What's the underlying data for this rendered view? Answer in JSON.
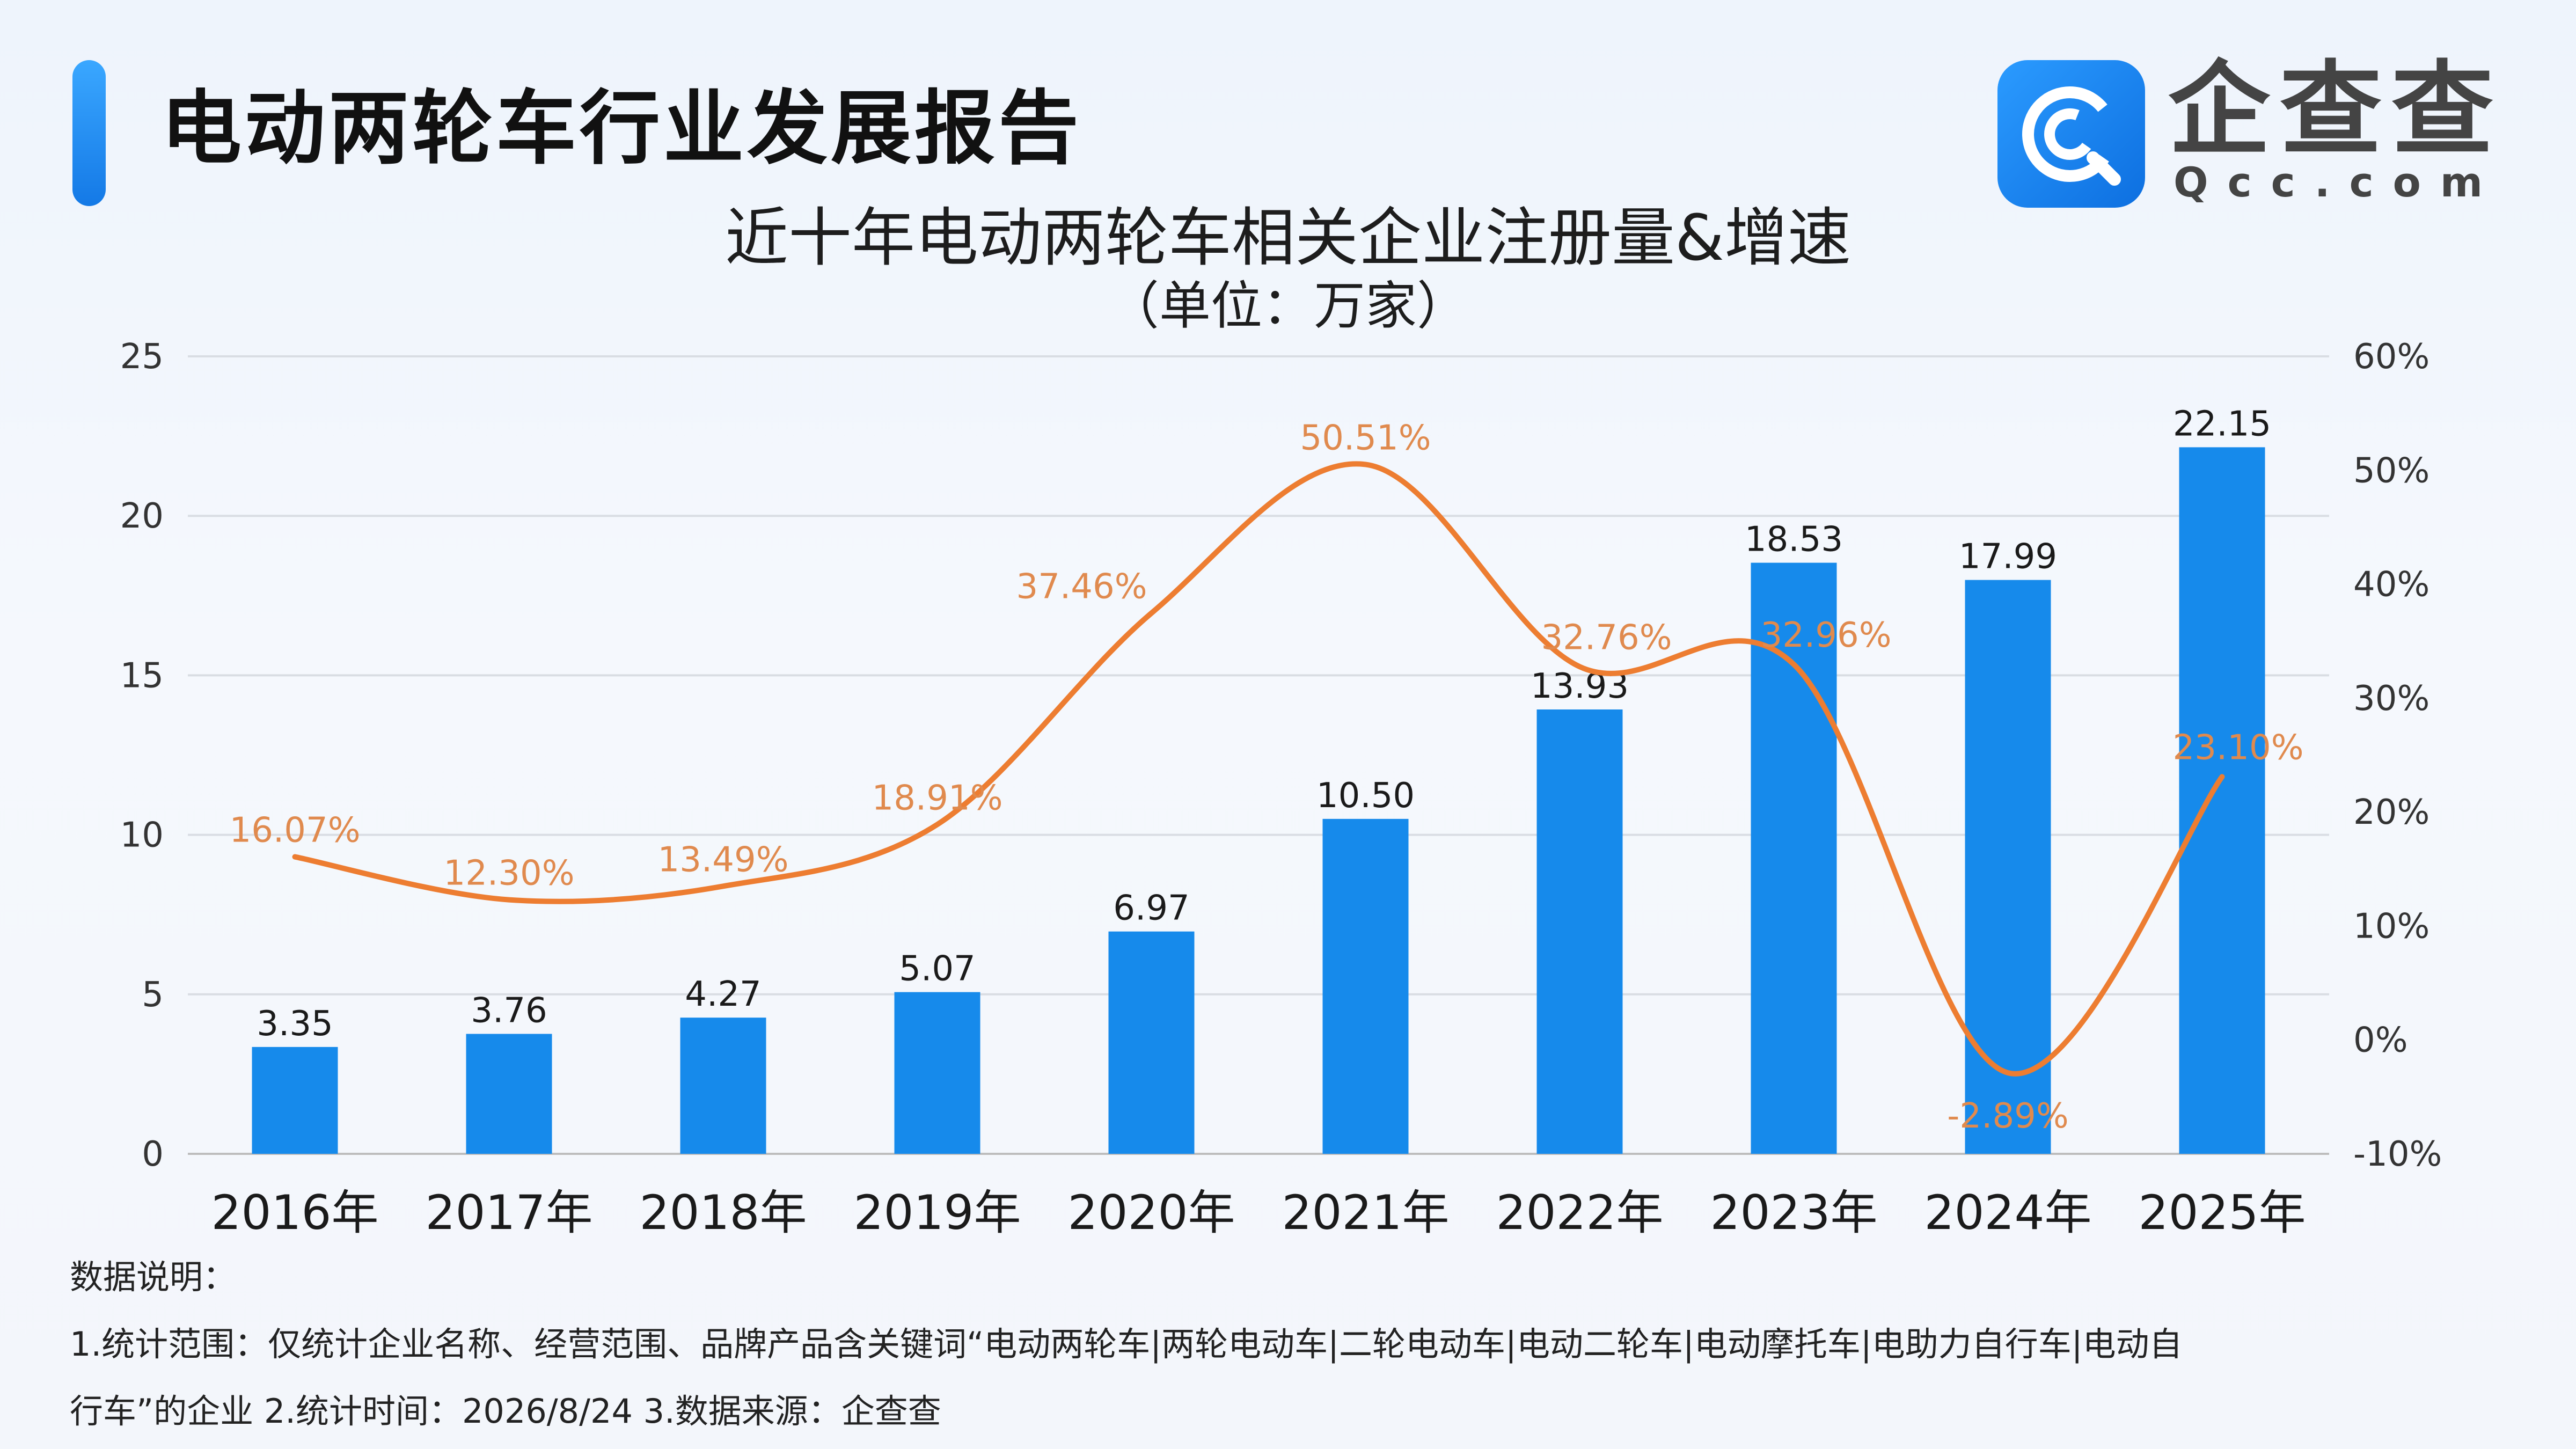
{
  "header": {
    "report_title": "电动两轮车行业发展报告",
    "brand_name": "企查查",
    "brand_domain": "Qcc.com"
  },
  "colors": {
    "bar": "#168aeb",
    "line": "#ed7d31",
    "line_label": "#e08a4e",
    "accent": "#1a86f5"
  },
  "chart_data": {
    "type": "bar",
    "title": "近十年电动两轮车相关企业注册量&增速",
    "subtitle": "（单位：万家）",
    "categories": [
      "2016年",
      "2017年",
      "2018年",
      "2019年",
      "2020年",
      "2021年",
      "2022年",
      "2023年",
      "2024年",
      "2025年"
    ],
    "series": [
      {
        "type": "bar",
        "axis": "left",
        "values": [
          3.35,
          3.76,
          4.27,
          5.07,
          6.97,
          10.5,
          13.93,
          18.53,
          17.99,
          22.15
        ],
        "labels": [
          "3.35",
          "3.76",
          "4.27",
          "5.07",
          "6.97",
          "10.50",
          "13.93",
          "18.53",
          "17.99",
          "22.15"
        ]
      },
      {
        "type": "line",
        "axis": "right",
        "smooth": true,
        "values": [
          16.07,
          12.3,
          13.49,
          18.91,
          37.46,
          50.51,
          32.76,
          32.96,
          -2.89,
          23.1
        ],
        "labels": [
          "16.07%",
          "12.30%",
          "13.49%",
          "18.91%",
          "37.46%",
          "50.51%",
          "32.76%",
          "32.96%",
          "-2.89%",
          "23.10%"
        ]
      }
    ],
    "y_left": {
      "min": 0,
      "max": 25,
      "ticks": [
        "0",
        "5",
        "10",
        "15",
        "20",
        "25"
      ]
    },
    "y_right": {
      "min": -10,
      "max": 60,
      "ticks": [
        "-10%",
        "0%",
        "10%",
        "20%",
        "30%",
        "40%",
        "50%",
        "60%"
      ]
    },
    "grid": true,
    "legend": "none"
  },
  "notes": {
    "title": "数据说明：",
    "line1": "1.统计范围：仅统计企业名称、经营范围、品牌产品含关键词“电动两轮车|两轮电动车|二轮电动车|电动二轮车|电动摩托车|电助力自行车|电动自",
    "line2": "行车”的企业 2.统计时间：2026/8/24 3.数据来源：企查查"
  }
}
